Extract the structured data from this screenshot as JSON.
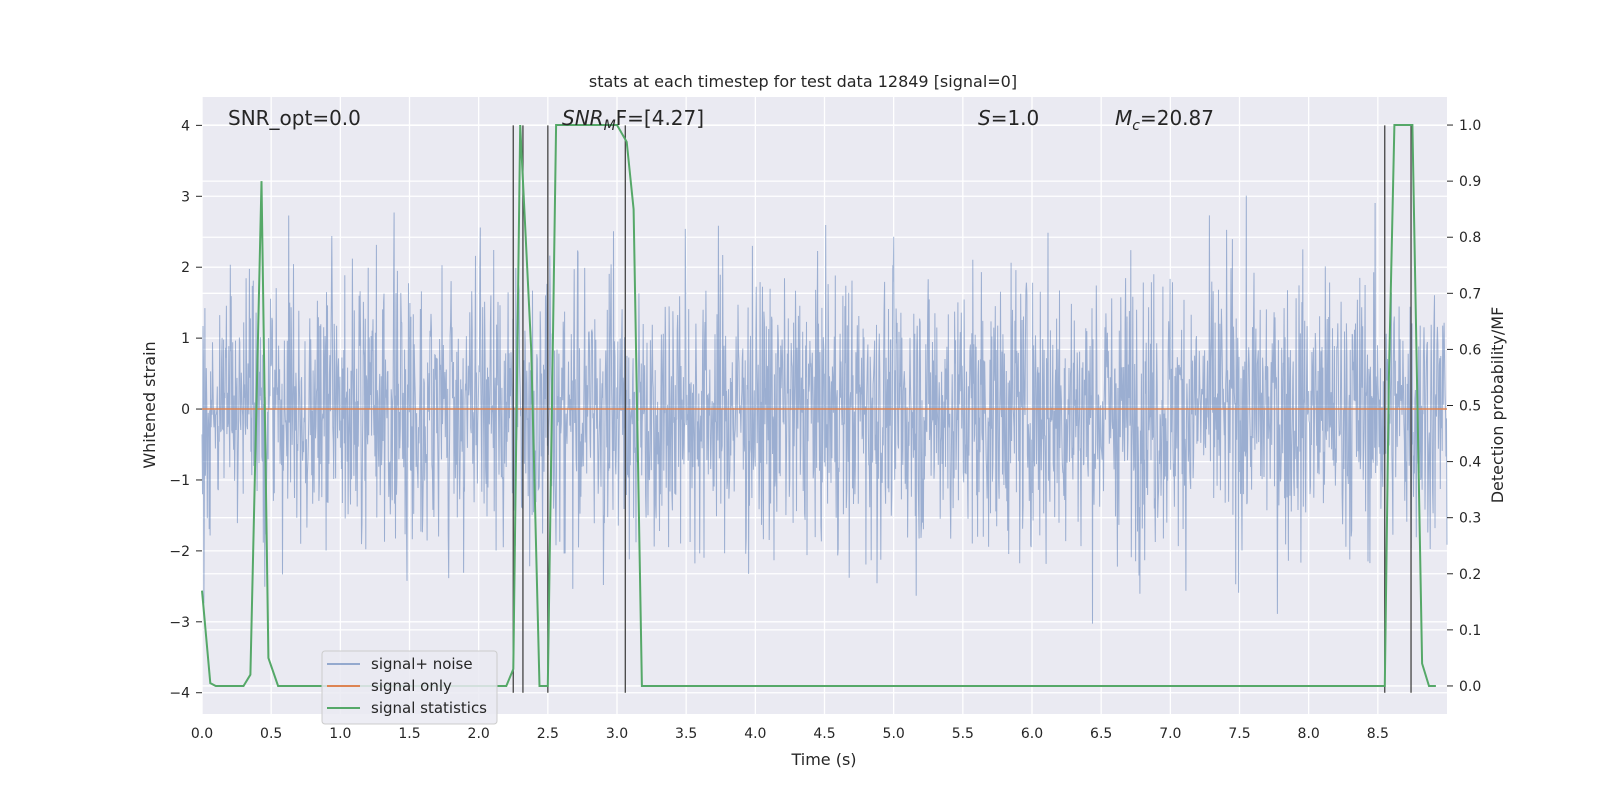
{
  "chart_data": {
    "type": "line",
    "title": "stats at each timestep for test data 12849 [signal=0]",
    "xlabel": "Time (s)",
    "ylabel": "Whitened strain",
    "ylabel_right": "Detection probability/MF",
    "xlim": [
      0.0,
      9.0
    ],
    "ylim": [
      -4.3,
      4.4
    ],
    "ylim_right": [
      -0.05,
      1.05
    ],
    "grid": true,
    "legend_position": "bottom-left",
    "x_ticks": [
      "0.0",
      "0.5",
      "1.0",
      "1.5",
      "2.0",
      "2.5",
      "3.0",
      "3.5",
      "4.0",
      "4.5",
      "5.0",
      "5.5",
      "6.0",
      "6.5",
      "7.0",
      "7.5",
      "8.0",
      "8.5"
    ],
    "y_ticks": [
      "4",
      "3",
      "2",
      "1",
      "0",
      "−1",
      "−2",
      "−3",
      "−4"
    ],
    "y_ticks_right": [
      "1.0",
      "0.9",
      "0.8",
      "0.7",
      "0.6",
      "0.5",
      "0.4",
      "0.3",
      "0.2",
      "0.1",
      "0.0"
    ],
    "annotations": {
      "snr_opt": "SNR_opt=0.0",
      "snr_mf": {
        "main": "SNR",
        "sub": "M",
        "tail": "F=[4.27]"
      },
      "s": {
        "main": "S",
        "tail": "=1.0"
      },
      "mc": {
        "main": "M",
        "sub": "c",
        "tail": "=20.87"
      }
    },
    "legend": [
      "signal+ noise",
      "signal only",
      "signal statistics"
    ],
    "series": [
      {
        "name": "signal+ noise",
        "color": "#4c72b0",
        "note": "whitened strain time series, approx. Gaussian noise with unit std"
      },
      {
        "name": "signal only",
        "color": "#dd8452",
        "value": 0.0
      },
      {
        "name": "signal statistics",
        "color": "#55a868",
        "x": [
          0.0,
          0.06,
          0.1,
          0.15,
          0.3,
          0.35,
          0.43,
          0.48,
          0.55,
          1.0,
          2.1,
          2.2,
          2.25,
          2.3,
          2.38,
          2.44,
          2.5,
          2.56,
          2.62,
          2.7,
          3.0,
          3.07,
          3.12,
          3.18,
          3.25,
          4.0,
          6.0,
          8.0,
          8.55,
          8.58,
          8.62,
          8.68,
          8.75,
          8.82,
          8.87,
          8.92
        ],
        "y": [
          0.17,
          0.005,
          0.0,
          0.0,
          0.0,
          0.02,
          0.9,
          0.05,
          0.0,
          0.0,
          0.0,
          0.0,
          0.03,
          1.0,
          0.6,
          0.0,
          0.0,
          1.0,
          1.0,
          1.0,
          1.0,
          0.97,
          0.85,
          0.0,
          0.0,
          0.0,
          0.0,
          0.0,
          0.0,
          0.55,
          1.0,
          1.0,
          1.0,
          0.04,
          0.0,
          0.0
        ]
      }
    ],
    "vertical_lines_x": [
      2.25,
      2.32,
      2.5,
      3.06,
      8.55,
      8.74
    ]
  }
}
